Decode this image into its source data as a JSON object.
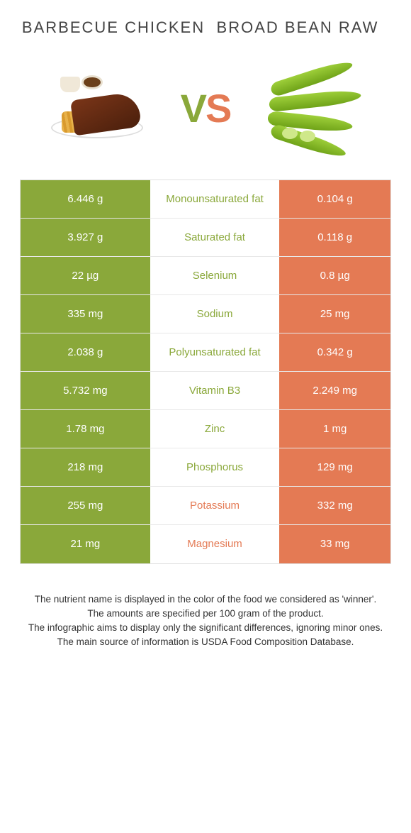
{
  "header": {
    "left_title": "BARBECUE CHICKEN",
    "right_title": "BROAD BEAN RAW"
  },
  "vs": {
    "v": "V",
    "s": "S"
  },
  "colors": {
    "green": "#8aa83a",
    "orange": "#e47a54"
  },
  "table": {
    "rows": [
      {
        "left": "6.446 g",
        "mid": "Monounsaturated fat",
        "right": "0.104 g",
        "winner": "left"
      },
      {
        "left": "3.927 g",
        "mid": "Saturated fat",
        "right": "0.118 g",
        "winner": "left"
      },
      {
        "left": "22 µg",
        "mid": "Selenium",
        "right": "0.8 µg",
        "winner": "left"
      },
      {
        "left": "335 mg",
        "mid": "Sodium",
        "right": "25 mg",
        "winner": "left"
      },
      {
        "left": "2.038 g",
        "mid": "Polyunsaturated fat",
        "right": "0.342 g",
        "winner": "left"
      },
      {
        "left": "5.732 mg",
        "mid": "Vitamin B3",
        "right": "2.249 mg",
        "winner": "left"
      },
      {
        "left": "1.78 mg",
        "mid": "Zinc",
        "right": "1 mg",
        "winner": "left"
      },
      {
        "left": "218 mg",
        "mid": "Phosphorus",
        "right": "129 mg",
        "winner": "left"
      },
      {
        "left": "255 mg",
        "mid": "Potassium",
        "right": "332 mg",
        "winner": "right"
      },
      {
        "left": "21 mg",
        "mid": "Magnesium",
        "right": "33 mg",
        "winner": "right"
      }
    ]
  },
  "footer": {
    "line1": "The nutrient name is displayed in the color of the food we considered as 'winner'.",
    "line2": "The amounts are specified per 100 gram of the product.",
    "line3": "The infographic aims to display only the significant differences, ignoring minor ones.",
    "line4": "The main source of information is USDA Food Composition Database."
  }
}
